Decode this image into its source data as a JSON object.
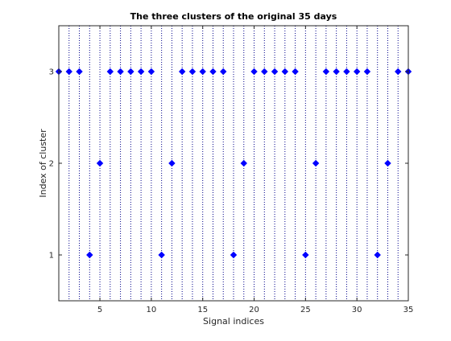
{
  "chart_data": {
    "type": "scatter",
    "title": "The three clusters of the original 35 days",
    "xlabel": "Signal indices",
    "ylabel": "Index of cluster",
    "xlim": [
      1,
      35
    ],
    "ylim": [
      0.5,
      3.5
    ],
    "xticks": [
      5,
      10,
      15,
      20,
      25,
      30,
      35
    ],
    "yticks": [
      1,
      2,
      3
    ],
    "grid": false,
    "stems": true,
    "marker_color": "#0000ff",
    "stem_color": "#00008b",
    "x": [
      1,
      2,
      3,
      4,
      5,
      6,
      7,
      8,
      9,
      10,
      11,
      12,
      13,
      14,
      15,
      16,
      17,
      18,
      19,
      20,
      21,
      22,
      23,
      24,
      25,
      26,
      27,
      28,
      29,
      30,
      31,
      32,
      33,
      34,
      35
    ],
    "y": [
      3,
      3,
      3,
      1,
      2,
      3,
      3,
      3,
      3,
      3,
      1,
      2,
      3,
      3,
      3,
      3,
      3,
      1,
      2,
      3,
      3,
      3,
      3,
      3,
      1,
      2,
      3,
      3,
      3,
      3,
      3,
      1,
      2,
      3,
      3
    ]
  }
}
